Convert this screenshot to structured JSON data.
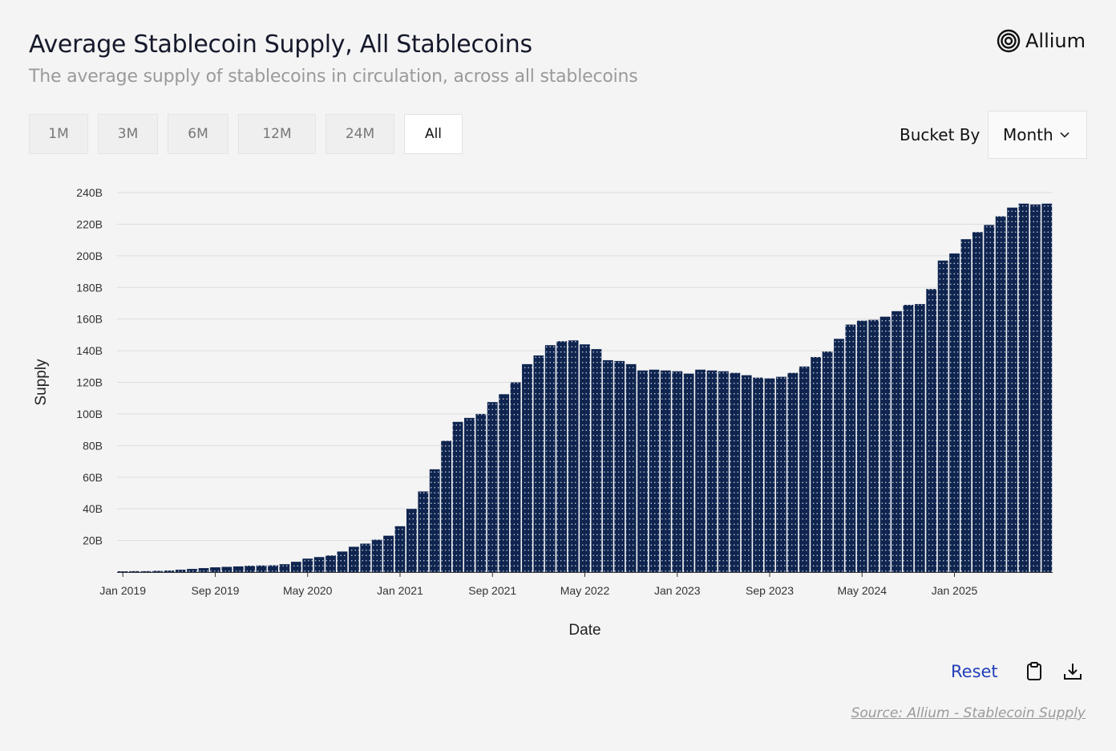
{
  "header": {
    "title": "Average Stablecoin Supply, All Stablecoins",
    "subtitle": "The average supply of stablecoins in circulation, across all stablecoins",
    "brand": "Allium",
    "brand_icon": "allium-logo-icon"
  },
  "ranges": [
    {
      "label": "1M",
      "active": false
    },
    {
      "label": "3M",
      "active": false
    },
    {
      "label": "6M",
      "active": false
    },
    {
      "label": "12M",
      "active": false
    },
    {
      "label": "24M",
      "active": false
    },
    {
      "label": "All",
      "active": true
    }
  ],
  "bucket": {
    "label": "Bucket By",
    "value": "Month",
    "icon": "chevron-down-icon"
  },
  "footer": {
    "reset_label": "Reset",
    "copy_icon": "clipboard-icon",
    "download_icon": "download-icon",
    "source": "Source: Allium - Stablecoin Supply"
  },
  "colors": {
    "bar": "#0f2550",
    "grid": "#dcdcdc",
    "accent": "#2340b8"
  },
  "chart_data": {
    "type": "bar",
    "xlabel": "Date",
    "ylabel": "Supply",
    "ylim": [
      0,
      240
    ],
    "y_ticks": [
      {
        "v": 20,
        "label": "20B"
      },
      {
        "v": 40,
        "label": "40B"
      },
      {
        "v": 60,
        "label": "60B"
      },
      {
        "v": 80,
        "label": "80B"
      },
      {
        "v": 100,
        "label": "100B"
      },
      {
        "v": 120,
        "label": "120B"
      },
      {
        "v": 140,
        "label": "140B"
      },
      {
        "v": 160,
        "label": "160B"
      },
      {
        "v": 180,
        "label": "180B"
      },
      {
        "v": 200,
        "label": "200B"
      },
      {
        "v": 220,
        "label": "220B"
      },
      {
        "v": 240,
        "label": "240B"
      }
    ],
    "x_ticks": [
      {
        "date": "2019-01",
        "label": "Jan 2019"
      },
      {
        "date": "2019-09",
        "label": "Sep 2019"
      },
      {
        "date": "2020-05",
        "label": "May 2020"
      },
      {
        "date": "2021-01",
        "label": "Jan 2021"
      },
      {
        "date": "2021-09",
        "label": "Sep 2021"
      },
      {
        "date": "2022-05",
        "label": "May 2022"
      },
      {
        "date": "2023-01",
        "label": "Jan 2023"
      },
      {
        "date": "2023-09",
        "label": "Sep 2023"
      },
      {
        "date": "2024-05",
        "label": "May 2024"
      },
      {
        "date": "2025-01",
        "label": "Jan 2025"
      }
    ],
    "grid": true,
    "categories": [
      "2019-01",
      "2019-02",
      "2019-03",
      "2019-04",
      "2019-05",
      "2019-06",
      "2019-07",
      "2019-08",
      "2019-09",
      "2019-10",
      "2019-11",
      "2019-12",
      "2020-01",
      "2020-02",
      "2020-03",
      "2020-04",
      "2020-05",
      "2020-06",
      "2020-07",
      "2020-08",
      "2020-09",
      "2020-10",
      "2020-11",
      "2020-12",
      "2021-01",
      "2021-02",
      "2021-03",
      "2021-04",
      "2021-05",
      "2021-06",
      "2021-07",
      "2021-08",
      "2021-09",
      "2021-10",
      "2021-11",
      "2021-12",
      "2022-01",
      "2022-02",
      "2022-03",
      "2022-04",
      "2022-05",
      "2022-06",
      "2022-07",
      "2022-08",
      "2022-09",
      "2022-10",
      "2022-11",
      "2022-12",
      "2023-01",
      "2023-02",
      "2023-03",
      "2023-04",
      "2023-05",
      "2023-06",
      "2023-07",
      "2023-08",
      "2023-09",
      "2023-10",
      "2023-11",
      "2023-12",
      "2024-01",
      "2024-02",
      "2024-03",
      "2024-04",
      "2024-05",
      "2024-06",
      "2024-07",
      "2024-08",
      "2024-09",
      "2024-10",
      "2024-11",
      "2024-12",
      "2025-01",
      "2025-02",
      "2025-03",
      "2025-04",
      "2025-05",
      "2025-06",
      "2025-07",
      "2025-08",
      "2025-09"
    ],
    "values": [
      0.5,
      0.6,
      0.6,
      0.8,
      1.0,
      1.5,
      2.0,
      2.5,
      3.0,
      3.3,
      3.6,
      4.0,
      4.2,
      4.3,
      5.0,
      6.5,
      8.5,
      9.5,
      10.5,
      13.0,
      16.0,
      18.0,
      20.5,
      23.0,
      29.0,
      40.0,
      51.0,
      65.0,
      83.0,
      95.0,
      97.5,
      100.0,
      107.5,
      112.5,
      120.0,
      131.5,
      137.0,
      143.5,
      146.0,
      146.5,
      144.0,
      141.0,
      134.0,
      133.5,
      131.5,
      127.5,
      128.0,
      127.5,
      127.0,
      125.5,
      128.0,
      127.5,
      127.0,
      126.0,
      124.5,
      123.0,
      122.5,
      123.5,
      126.0,
      130.0,
      136.0,
      139.5,
      147.5,
      156.5,
      159.0,
      159.5,
      161.5,
      165.0,
      169.0,
      169.5,
      179.0,
      197.0,
      201.5,
      210.5,
      215.0,
      219.5,
      225.0,
      230.5,
      233.0,
      232.5,
      233.0
    ]
  }
}
